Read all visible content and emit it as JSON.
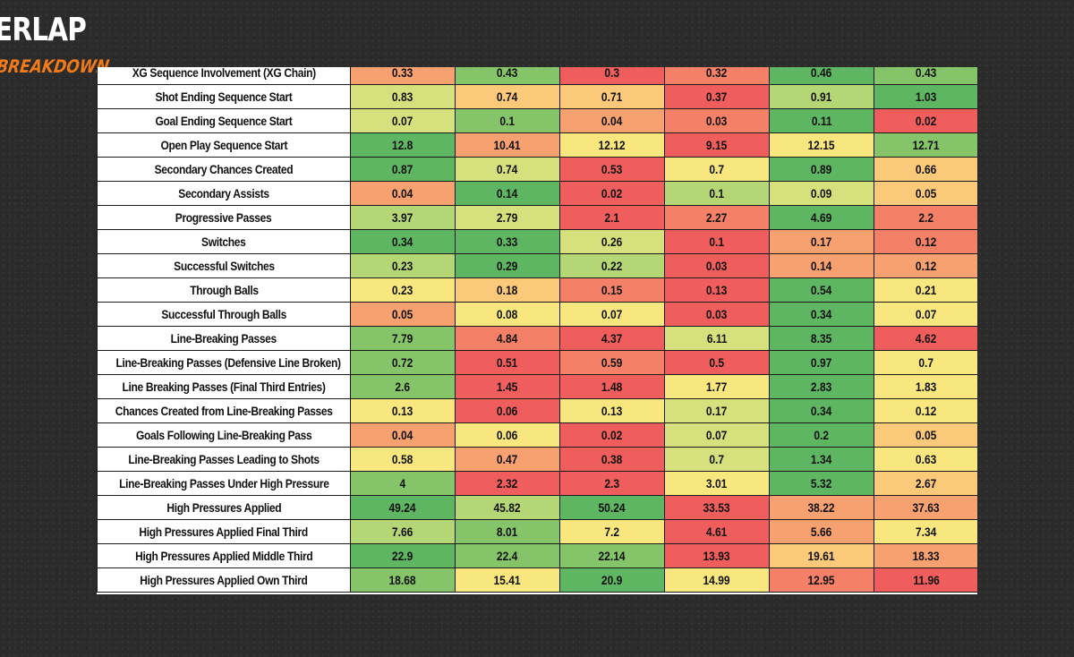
{
  "logo": {
    "top_text": "ERLAP",
    "bottom_text": "BREAKDOWN"
  },
  "colors": {
    "dark_green": "#5eb562",
    "green": "#86c46a",
    "light_green": "#b4d675",
    "yellow_green": "#d6e07c",
    "yellow": "#f8e77e",
    "light_orange": "#fbc97a",
    "orange": "#f7a070",
    "red_orange": "#f48068",
    "red": "#ef5e5c"
  },
  "table": {
    "rows": [
      {
        "label": "XG Sequence Involvement (XG Chain)",
        "values": [
          "0.33",
          "0.43",
          "0.3",
          "0.32",
          "0.46",
          "0.43"
        ],
        "colors": [
          "orange",
          "green",
          "red",
          "red_orange",
          "dark_green",
          "green"
        ]
      },
      {
        "label": "Shot Ending Sequence Start",
        "values": [
          "0.83",
          "0.74",
          "0.71",
          "0.37",
          "0.91",
          "1.03"
        ],
        "colors": [
          "yellow_green",
          "light_orange",
          "light_orange",
          "red",
          "light_green",
          "dark_green"
        ]
      },
      {
        "label": "Goal Ending Sequence Start",
        "values": [
          "0.07",
          "0.1",
          "0.04",
          "0.03",
          "0.11",
          "0.02"
        ],
        "colors": [
          "yellow_green",
          "green",
          "orange",
          "red_orange",
          "dark_green",
          "red"
        ]
      },
      {
        "label": "Open Play Sequence Start",
        "values": [
          "12.8",
          "10.41",
          "12.12",
          "9.15",
          "12.15",
          "12.71"
        ],
        "colors": [
          "dark_green",
          "orange",
          "yellow",
          "red",
          "yellow",
          "green"
        ]
      },
      {
        "label": "Secondary Chances Created",
        "values": [
          "0.87",
          "0.74",
          "0.53",
          "0.7",
          "0.89",
          "0.66"
        ],
        "colors": [
          "dark_green",
          "yellow_green",
          "red",
          "yellow",
          "dark_green",
          "light_orange"
        ]
      },
      {
        "label": "Secondary Assists",
        "values": [
          "0.04",
          "0.14",
          "0.02",
          "0.1",
          "0.09",
          "0.05"
        ],
        "colors": [
          "orange",
          "dark_green",
          "red",
          "light_green",
          "yellow_green",
          "light_orange"
        ]
      },
      {
        "label": "Progressive Passes",
        "values": [
          "3.97",
          "2.79",
          "2.1",
          "2.27",
          "4.69",
          "2.2"
        ],
        "colors": [
          "light_green",
          "yellow_green",
          "red",
          "red_orange",
          "dark_green",
          "red_orange"
        ]
      },
      {
        "label": "Switches",
        "values": [
          "0.34",
          "0.33",
          "0.26",
          "0.1",
          "0.17",
          "0.12"
        ],
        "colors": [
          "dark_green",
          "dark_green",
          "yellow_green",
          "red",
          "orange",
          "red_orange"
        ]
      },
      {
        "label": "Successful Switches",
        "values": [
          "0.23",
          "0.29",
          "0.22",
          "0.03",
          "0.14",
          "0.12"
        ],
        "colors": [
          "light_green",
          "dark_green",
          "light_green",
          "red",
          "orange",
          "orange"
        ]
      },
      {
        "label": "Through Balls",
        "values": [
          "0.23",
          "0.18",
          "0.15",
          "0.13",
          "0.54",
          "0.21"
        ],
        "colors": [
          "yellow",
          "light_orange",
          "red_orange",
          "red",
          "dark_green",
          "yellow"
        ]
      },
      {
        "label": "Successful Through Balls",
        "values": [
          "0.05",
          "0.08",
          "0.07",
          "0.03",
          "0.34",
          "0.07"
        ],
        "colors": [
          "orange",
          "yellow",
          "yellow",
          "red",
          "dark_green",
          "yellow"
        ]
      },
      {
        "label": "Line-Breaking Passes",
        "values": [
          "7.79",
          "4.84",
          "4.37",
          "6.11",
          "8.35",
          "4.62"
        ],
        "colors": [
          "green",
          "red_orange",
          "red",
          "yellow_green",
          "dark_green",
          "red"
        ]
      },
      {
        "label": "Line-Breaking Passes (Defensive Line Broken)",
        "values": [
          "0.72",
          "0.51",
          "0.59",
          "0.5",
          "0.97",
          "0.7"
        ],
        "colors": [
          "green",
          "red",
          "red_orange",
          "red",
          "dark_green",
          "yellow"
        ]
      },
      {
        "label": "Line Breaking Passes (Final Third Entries)",
        "values": [
          "2.6",
          "1.45",
          "1.48",
          "1.77",
          "2.83",
          "1.83"
        ],
        "colors": [
          "green",
          "red",
          "red",
          "yellow",
          "dark_green",
          "yellow"
        ]
      },
      {
        "label": "Chances Created from Line-Breaking Passes",
        "values": [
          "0.13",
          "0.06",
          "0.13",
          "0.17",
          "0.34",
          "0.12"
        ],
        "colors": [
          "yellow",
          "red",
          "yellow",
          "yellow_green",
          "dark_green",
          "yellow"
        ]
      },
      {
        "label": "Goals Following Line-Breaking Pass",
        "values": [
          "0.04",
          "0.06",
          "0.02",
          "0.07",
          "0.2",
          "0.05"
        ],
        "colors": [
          "orange",
          "yellow",
          "red",
          "yellow_green",
          "dark_green",
          "light_orange"
        ]
      },
      {
        "label": "Line-Breaking Passes Leading to Shots",
        "values": [
          "0.58",
          "0.47",
          "0.38",
          "0.7",
          "1.34",
          "0.63"
        ],
        "colors": [
          "yellow",
          "orange",
          "red",
          "yellow_green",
          "dark_green",
          "yellow"
        ]
      },
      {
        "label": "Line-Breaking Passes Under High Pressure",
        "values": [
          "4",
          "2.32",
          "2.3",
          "3.01",
          "5.32",
          "2.67"
        ],
        "colors": [
          "green",
          "red",
          "red",
          "yellow",
          "dark_green",
          "light_orange"
        ]
      },
      {
        "label": "High Pressures Applied",
        "values": [
          "49.24",
          "45.82",
          "50.24",
          "33.53",
          "38.22",
          "37.63"
        ],
        "colors": [
          "dark_green",
          "light_green",
          "dark_green",
          "red",
          "orange",
          "orange"
        ]
      },
      {
        "label": "High Pressures Applied Final Third",
        "values": [
          "7.66",
          "8.01",
          "7.2",
          "4.61",
          "5.66",
          "7.34"
        ],
        "colors": [
          "light_green",
          "green",
          "yellow",
          "red",
          "orange",
          "yellow"
        ]
      },
      {
        "label": "High Pressures Applied Middle Third",
        "values": [
          "22.9",
          "22.4",
          "22.14",
          "13.93",
          "19.61",
          "18.33"
        ],
        "colors": [
          "dark_green",
          "green",
          "green",
          "red",
          "light_orange",
          "orange"
        ]
      },
      {
        "label": "High Pressures Applied Own Third",
        "values": [
          "18.68",
          "15.41",
          "20.9",
          "14.99",
          "12.95",
          "11.96"
        ],
        "colors": [
          "green",
          "yellow",
          "dark_green",
          "yellow",
          "red_orange",
          "red"
        ]
      }
    ]
  }
}
